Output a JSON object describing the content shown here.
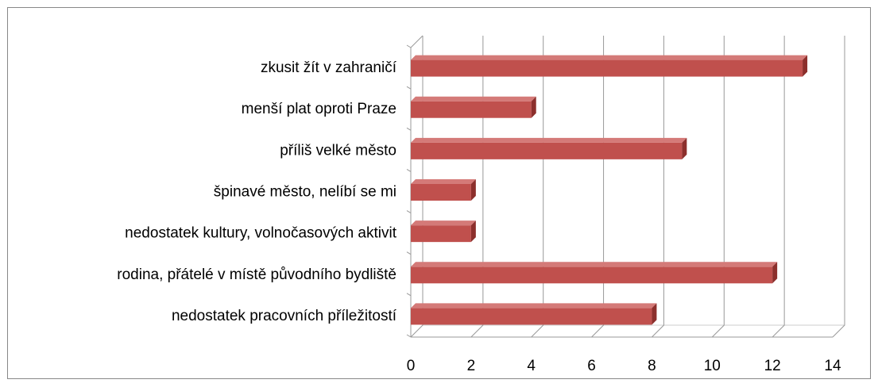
{
  "chart_data": {
    "type": "bar",
    "orientation": "horizontal",
    "categories": [
      "zkusit žít v zahraničí",
      "menší plat oproti Praze",
      "příliš velké město",
      "špinavé město, nelíbí se mi",
      "nedostatek kultury, volnočasových aktivit",
      "rodina, přátelé v místě původního bydliště",
      "nedostatek pracovních příležitostí"
    ],
    "values": [
      13,
      4,
      9,
      2,
      2,
      12,
      8
    ],
    "color": "#c0504d",
    "xlim": [
      0,
      14
    ],
    "xticks": [
      0,
      2,
      4,
      6,
      8,
      10,
      12,
      14
    ],
    "grid": true
  }
}
